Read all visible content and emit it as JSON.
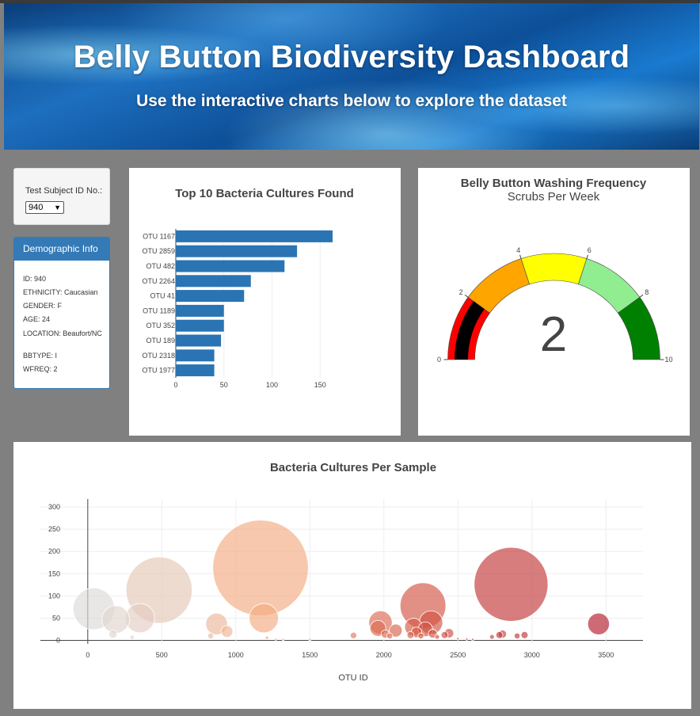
{
  "header": {
    "title": "Belly Button Biodiversity Dashboard",
    "subtitle": "Use the interactive charts below to explore the dataset"
  },
  "selector": {
    "label": "Test Subject ID No.:",
    "value": "940"
  },
  "demographics": {
    "heading": "Demographic Info",
    "rows": [
      "ID: 940",
      "ETHNICITY: Caucasian",
      "GENDER: F",
      "AGE: 24",
      "LOCATION: Beaufort/NC",
      "BBTYPE: I",
      "WFREQ: 2"
    ]
  },
  "colors": {
    "bar": "#2a74b3",
    "selector_panel": "#f5f5f5",
    "panel_heading": "#337ab7"
  },
  "chart_data": [
    {
      "type": "bar",
      "orientation": "horizontal",
      "title": "Top 10 Bacteria Cultures Found",
      "categories": [
        "OTU 1167",
        "OTU 2859",
        "OTU 482",
        "OTU 2264",
        "OTU 41",
        "OTU 1189",
        "OTU 352",
        "OTU 189",
        "OTU 2318",
        "OTU 1977"
      ],
      "values": [
        163,
        126,
        113,
        78,
        71,
        50,
        50,
        47,
        40,
        40
      ],
      "xticks": [
        0,
        50,
        100,
        150
      ],
      "xlim": [
        0,
        172
      ],
      "grid": true
    },
    {
      "type": "gauge",
      "title": "Belly Button Washing Frequency",
      "subtitle": "Scrubs Per Week",
      "value": 2,
      "range": [
        0,
        10
      ],
      "ticks": [
        0,
        2,
        4,
        6,
        8,
        10
      ],
      "bands": [
        {
          "from": 0,
          "to": 2,
          "color": "#ff0000"
        },
        {
          "from": 2,
          "to": 4,
          "color": "#ffa500"
        },
        {
          "from": 4,
          "to": 6,
          "color": "#ffff00"
        },
        {
          "from": 6,
          "to": 8,
          "color": "#90ee90"
        },
        {
          "from": 8,
          "to": 10,
          "color": "#008000"
        }
      ],
      "bar_color": "#000000"
    },
    {
      "type": "scatter",
      "subtype": "bubble",
      "title": "Bacteria Cultures Per Sample",
      "xlabel": "OTU ID",
      "xticks": [
        0,
        500,
        1000,
        1500,
        2000,
        2500,
        3000,
        3500
      ],
      "yticks": [
        0,
        50,
        100,
        150,
        200,
        250,
        300
      ],
      "xlim": [
        -320,
        3750
      ],
      "ylim": [
        -8,
        318
      ],
      "grid": true,
      "points": [
        {
          "x": 41,
          "y": 71
        },
        {
          "x": 189,
          "y": 47
        },
        {
          "x": 352,
          "y": 50
        },
        {
          "x": 482,
          "y": 113
        },
        {
          "x": 170,
          "y": 14
        },
        {
          "x": 300,
          "y": 7
        },
        {
          "x": 870,
          "y": 37
        },
        {
          "x": 940,
          "y": 20
        },
        {
          "x": 830,
          "y": 10
        },
        {
          "x": 1167,
          "y": 163
        },
        {
          "x": 1189,
          "y": 50
        },
        {
          "x": 1210,
          "y": 6
        },
        {
          "x": 1270,
          "y": 3
        },
        {
          "x": 1320,
          "y": 2
        },
        {
          "x": 1500,
          "y": 2
        },
        {
          "x": 1795,
          "y": 11
        },
        {
          "x": 1977,
          "y": 40
        },
        {
          "x": 1960,
          "y": 27
        },
        {
          "x": 2010,
          "y": 14
        },
        {
          "x": 2040,
          "y": 10
        },
        {
          "x": 2080,
          "y": 22
        },
        {
          "x": 2180,
          "y": 12
        },
        {
          "x": 2264,
          "y": 78
        },
        {
          "x": 2200,
          "y": 30
        },
        {
          "x": 2220,
          "y": 18
        },
        {
          "x": 2250,
          "y": 10
        },
        {
          "x": 2280,
          "y": 25
        },
        {
          "x": 2318,
          "y": 40
        },
        {
          "x": 2330,
          "y": 15
        },
        {
          "x": 2360,
          "y": 8
        },
        {
          "x": 2410,
          "y": 12
        },
        {
          "x": 2440,
          "y": 16
        },
        {
          "x": 2500,
          "y": 4
        },
        {
          "x": 2560,
          "y": 3
        },
        {
          "x": 2600,
          "y": 2
        },
        {
          "x": 2730,
          "y": 8
        },
        {
          "x": 2780,
          "y": 12
        },
        {
          "x": 2800,
          "y": 14
        },
        {
          "x": 2859,
          "y": 126
        },
        {
          "x": 2900,
          "y": 10
        },
        {
          "x": 2950,
          "y": 12
        },
        {
          "x": 3450,
          "y": 37
        }
      ]
    }
  ]
}
